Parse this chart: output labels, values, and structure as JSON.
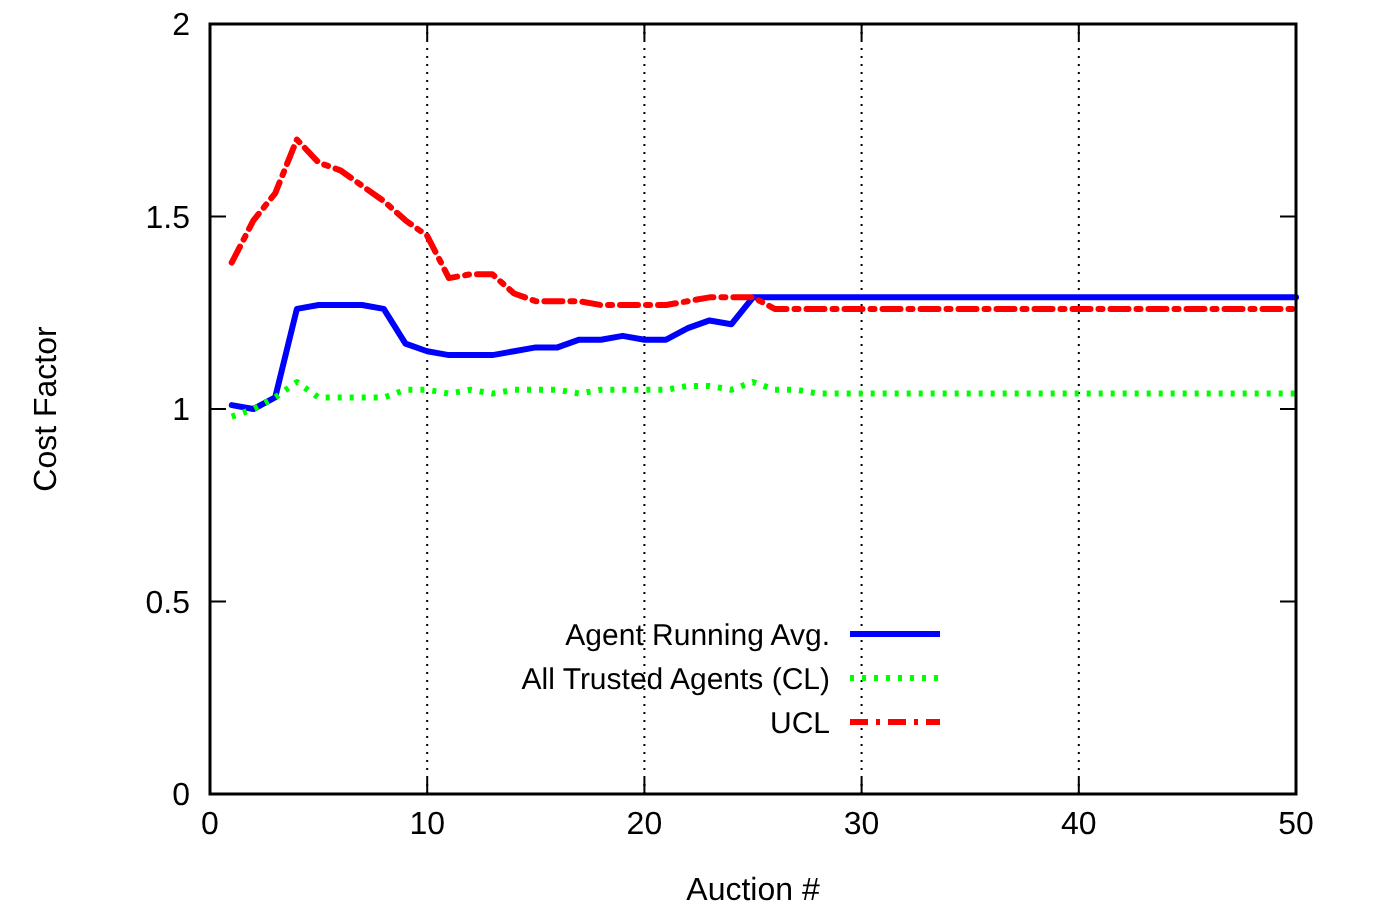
{
  "chart_data": {
    "type": "line",
    "xlabel": "Auction #",
    "ylabel": "Cost Factor",
    "xlim": [
      0,
      50
    ],
    "xticks": [
      0,
      10,
      20,
      30,
      40,
      50
    ],
    "ylim": [
      0,
      2
    ],
    "yticks": [
      0,
      0.5,
      1,
      1.5,
      2
    ],
    "grid": "x",
    "legend": "bottom",
    "marker": "none",
    "series": [
      {
        "name": "Agent Running Avg.",
        "color": "#0000ff",
        "line_style": "solid",
        "x": [
          1,
          2,
          3,
          4,
          5,
          6,
          7,
          8,
          9,
          10,
          11,
          12,
          13,
          14,
          15,
          16,
          17,
          18,
          19,
          20,
          21,
          22,
          23,
          24,
          25,
          50
        ],
        "values": [
          1.01,
          1.0,
          1.03,
          1.26,
          1.27,
          1.27,
          1.27,
          1.26,
          1.17,
          1.15,
          1.14,
          1.14,
          1.14,
          1.15,
          1.16,
          1.16,
          1.18,
          1.18,
          1.19,
          1.18,
          1.18,
          1.21,
          1.23,
          1.22,
          1.29,
          1.29
        ]
      },
      {
        "name": "All Trusted Agents (CL)",
        "color": "#00ff00",
        "line_style": "dotted",
        "x": [
          1,
          2,
          3,
          4,
          5,
          6,
          7,
          8,
          9,
          10,
          11,
          12,
          13,
          14,
          15,
          16,
          17,
          18,
          19,
          20,
          21,
          22,
          23,
          24,
          25,
          26,
          27,
          28,
          50
        ],
        "values": [
          0.98,
          1.0,
          1.03,
          1.07,
          1.03,
          1.03,
          1.03,
          1.03,
          1.05,
          1.05,
          1.04,
          1.05,
          1.04,
          1.05,
          1.05,
          1.05,
          1.04,
          1.05,
          1.05,
          1.05,
          1.05,
          1.06,
          1.06,
          1.05,
          1.07,
          1.05,
          1.05,
          1.04,
          1.04
        ]
      },
      {
        "name": "UCL",
        "color": "#ff0000",
        "line_style": "dashed",
        "x": [
          1,
          2,
          3,
          4,
          5,
          6,
          7,
          8,
          9,
          10,
          11,
          12,
          13,
          14,
          15,
          16,
          17,
          18,
          19,
          20,
          21,
          22,
          23,
          24,
          25,
          26,
          50
        ],
        "values": [
          1.38,
          1.49,
          1.56,
          1.7,
          1.64,
          1.62,
          1.58,
          1.54,
          1.49,
          1.45,
          1.34,
          1.35,
          1.35,
          1.3,
          1.28,
          1.28,
          1.28,
          1.27,
          1.27,
          1.27,
          1.27,
          1.28,
          1.29,
          1.29,
          1.29,
          1.26,
          1.26
        ]
      }
    ]
  }
}
